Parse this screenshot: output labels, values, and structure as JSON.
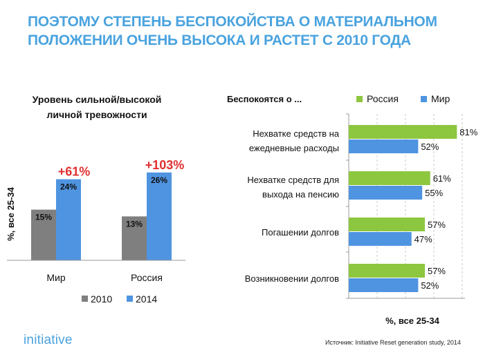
{
  "title_lines": [
    "ПОЭТОМУ СТЕПЕНЬ БЕСПОКОЙСТВА О МАТЕРИАЛЬНОМ",
    "ПОЛОЖЕНИИ ОЧЕНЬ ВЫСОКА И РАСТЕТ С 2010 ГОДА"
  ],
  "logo": "initiative",
  "source": "Источник: Initiative Reset generation study, 2014",
  "colors": {
    "title": "#4aa3df",
    "bar_2010": "#7f7f7f",
    "bar_2014": "#4f94e0",
    "russia": "#8dc63f",
    "world": "#4f94e0",
    "growth": "#e03030"
  },
  "chart_data": [
    {
      "type": "bar",
      "title_lines": [
        "Уровень сильной/высокой",
        "личной тревожности"
      ],
      "ylabel": "%, все 25-34",
      "categories": [
        "Мир",
        "Россия"
      ],
      "series": [
        {
          "name": "2010",
          "values": [
            15,
            13
          ],
          "labels": [
            "15%",
            "13%"
          ]
        },
        {
          "name": "2014",
          "values": [
            24,
            26
          ],
          "labels": [
            "24%",
            "26%"
          ]
        }
      ],
      "annotations": [
        "+61%",
        "+103%"
      ],
      "ylim": [
        0,
        28
      ]
    },
    {
      "type": "bar",
      "orientation": "horizontal",
      "title": "Беспокоятся о ...",
      "xlabel": "%, все 25-34",
      "categories": [
        [
          "Нехватке средств на",
          "ежедневные расходы"
        ],
        [
          "Нехватке средств для",
          "выхода на пенсию"
        ],
        [
          "Погашении долгов"
        ],
        [
          "Возникновении долгов"
        ]
      ],
      "series": [
        {
          "name": "Россия",
          "values": [
            81,
            61,
            57,
            57
          ],
          "labels": [
            "81%",
            "61%",
            "57%",
            "57%"
          ]
        },
        {
          "name": "Мир",
          "values": [
            52,
            55,
            47,
            52
          ],
          "labels": [
            "52%",
            "55%",
            "47%",
            "52%"
          ]
        }
      ],
      "xlim": [
        0,
        85
      ]
    }
  ]
}
